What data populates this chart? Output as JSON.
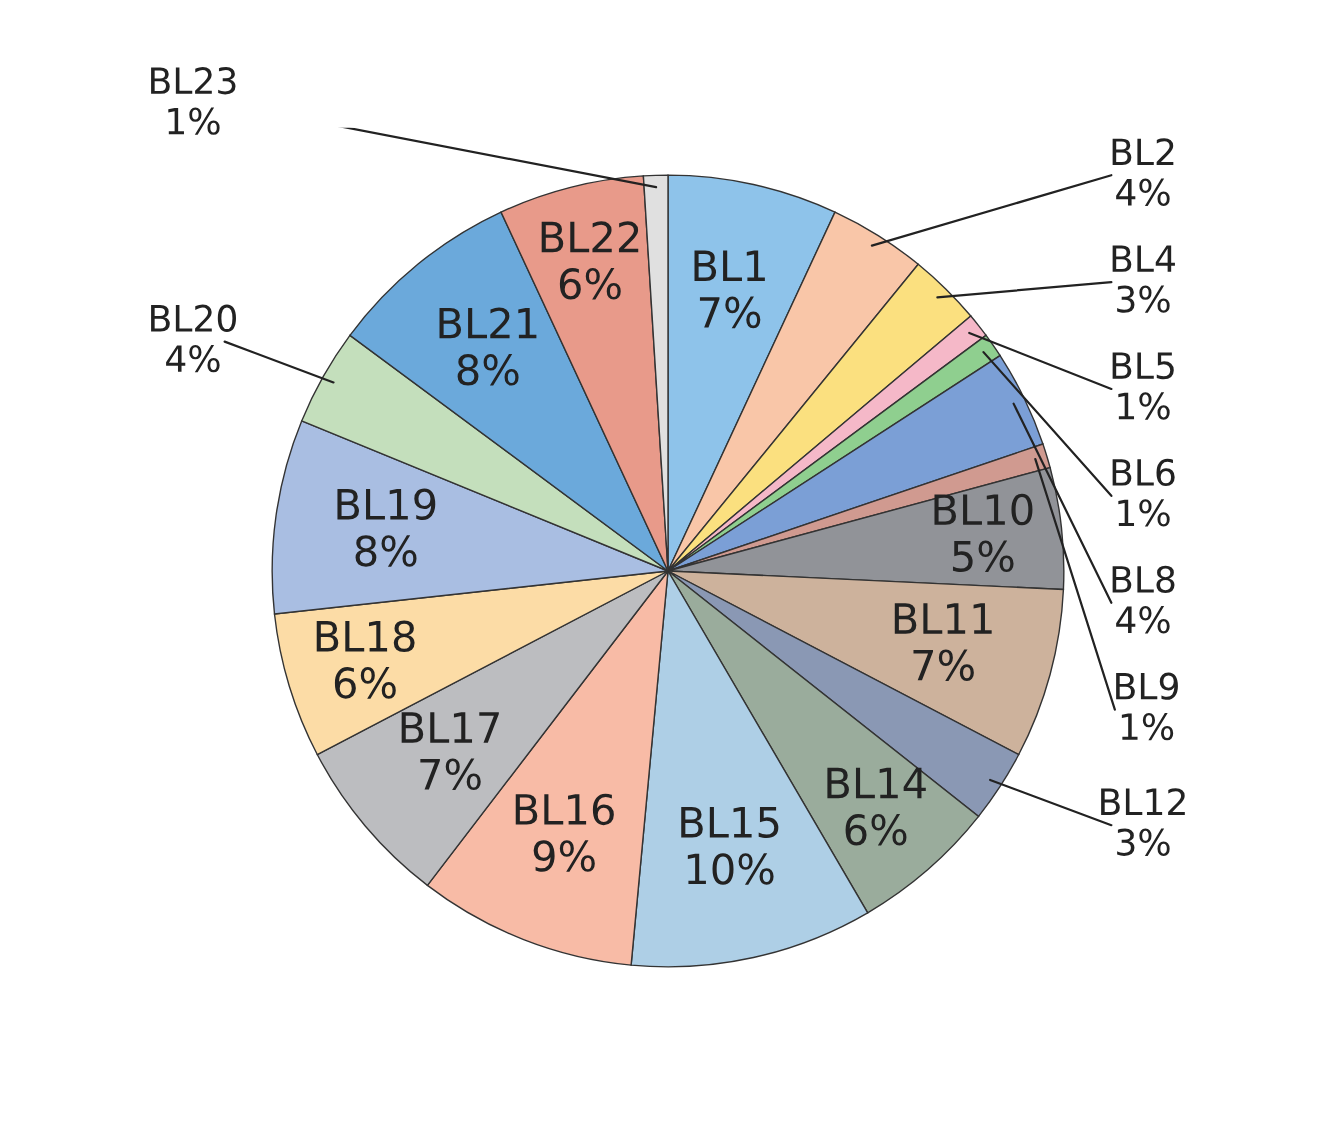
{
  "chart_data": {
    "type": "pie",
    "categories": [
      "BL1",
      "BL2",
      "BL4",
      "BL5",
      "BL6",
      "BL8",
      "BL9",
      "BL10",
      "BL11",
      "BL12",
      "BL14",
      "BL15",
      "BL16",
      "BL17",
      "BL18",
      "BL19",
      "BL20",
      "BL21",
      "BL22",
      "BL23"
    ],
    "values": [
      7,
      4,
      3,
      1,
      1,
      4,
      1,
      5,
      7,
      3,
      6,
      10,
      9,
      7,
      6,
      8,
      4,
      8,
      6,
      1
    ],
    "value_labels": [
      "7%",
      "4%",
      "3%",
      "1%",
      "1%",
      "4%",
      "1%",
      "5%",
      "7%",
      "3%",
      "6%",
      "10%",
      "9%",
      "7%",
      "6%",
      "8%",
      "4%",
      "8%",
      "6%",
      "1%"
    ],
    "colors": [
      "#8ec3ea",
      "#f9c6a8",
      "#fbe07f",
      "#f5b8c8",
      "#8fcf8f",
      "#7b9fd6",
      "#d09a90",
      "#919398",
      "#cdb29c",
      "#8a98b4",
      "#9aac9c",
      "#aecfe6",
      "#f8bba6",
      "#bcbdc0",
      "#fcdca6",
      "#a9bee2",
      "#c4dfbc",
      "#6ba9db",
      "#e89a8a",
      "#e0e0e0"
    ],
    "legend": false
  }
}
